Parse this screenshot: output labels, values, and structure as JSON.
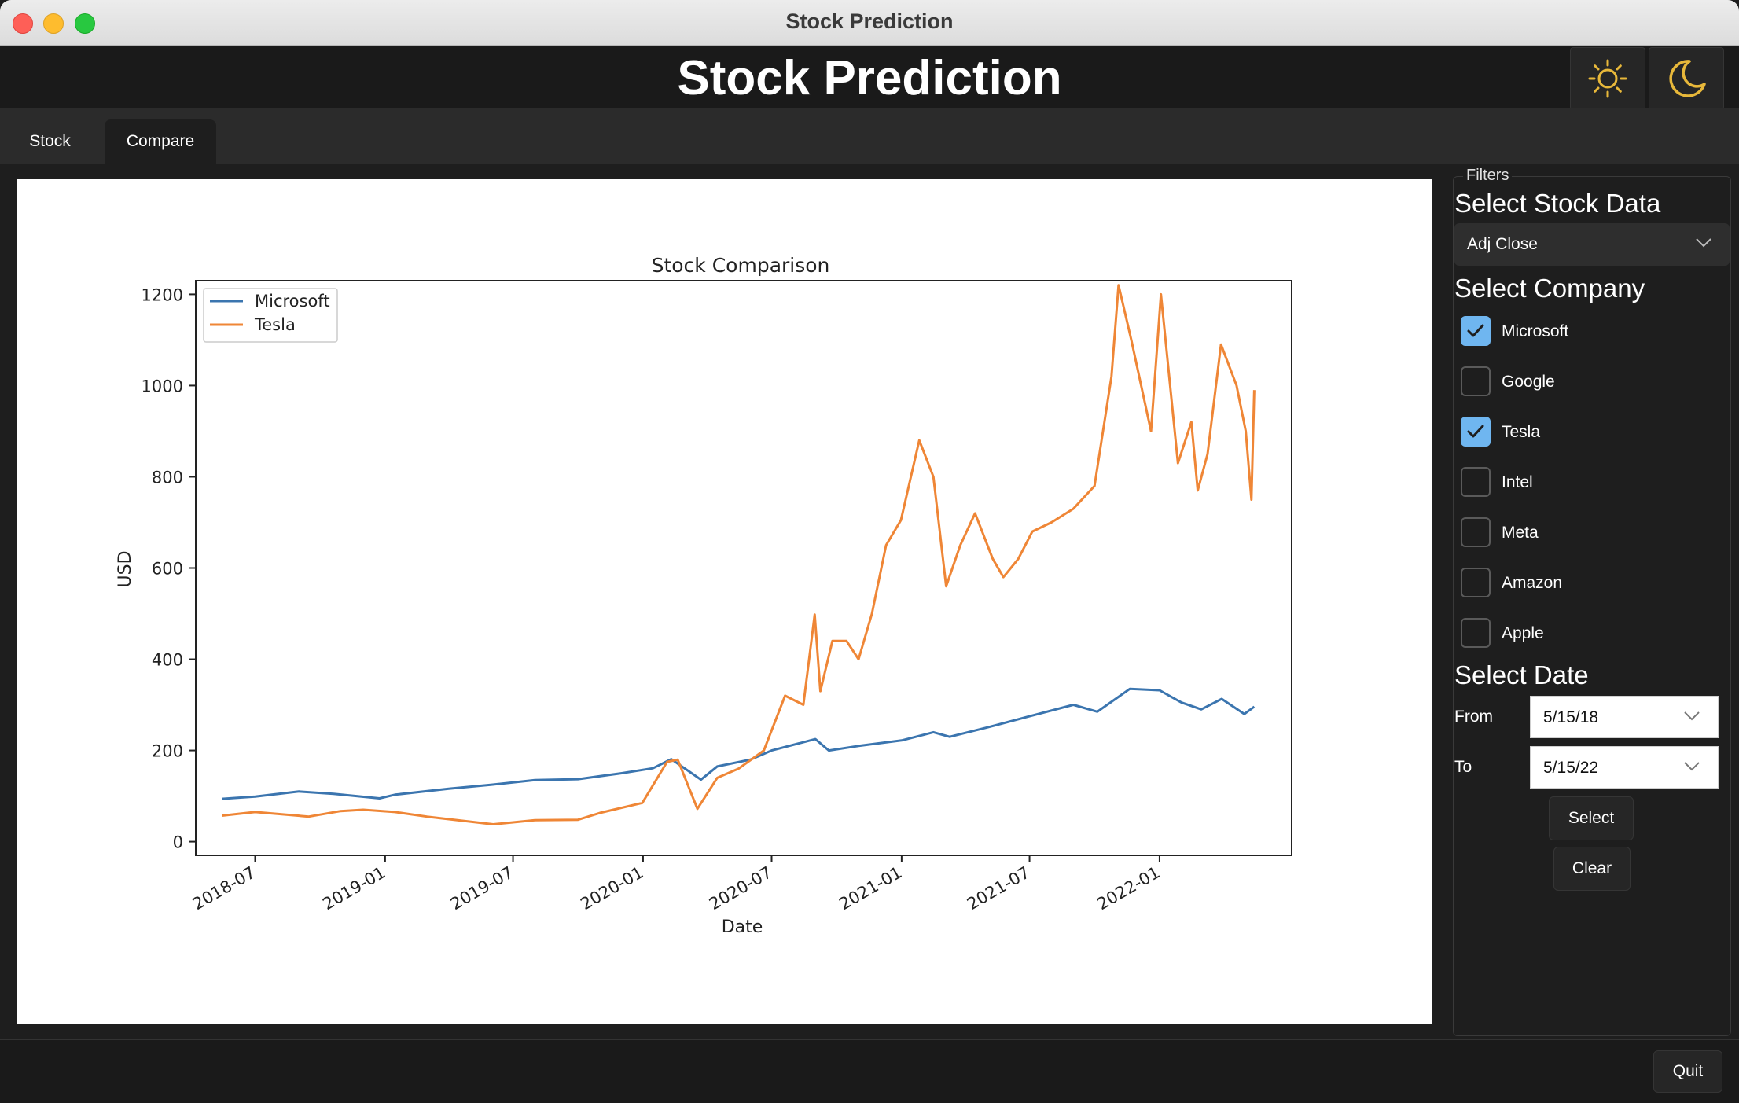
{
  "window": {
    "title": "Stock Prediction"
  },
  "header": {
    "title": "Stock Prediction",
    "light_theme_icon": "sun-icon",
    "dark_theme_icon": "moon-icon"
  },
  "tabs": [
    {
      "label": "Stock",
      "active": false
    },
    {
      "label": "Compare",
      "active": true
    }
  ],
  "filters": {
    "legend": "Filters",
    "stock_data_heading": "Select Stock Data",
    "stock_data_value": "Adj Close",
    "company_heading": "Select Company",
    "companies": [
      {
        "label": "Microsoft",
        "checked": true
      },
      {
        "label": "Google",
        "checked": false
      },
      {
        "label": "Tesla",
        "checked": true
      },
      {
        "label": "Intel",
        "checked": false
      },
      {
        "label": "Meta",
        "checked": false
      },
      {
        "label": "Amazon",
        "checked": false
      },
      {
        "label": "Apple",
        "checked": false
      }
    ],
    "date_heading": "Select Date",
    "from_label": "From",
    "from_value": "5/15/18",
    "to_label": "To",
    "to_value": "5/15/22",
    "select_button": "Select",
    "clear_button": "Clear"
  },
  "footer": {
    "quit_button": "Quit"
  },
  "colors": {
    "microsoft": "#3b75af",
    "tesla": "#ef8636",
    "checkbox_checked": "#6fb6f0",
    "theme_icon": "#e8b83a"
  },
  "chart_data": {
    "type": "line",
    "title": "Stock Comparison",
    "xlabel": "Date",
    "ylabel": "USD",
    "ylim": [
      -30,
      1230
    ],
    "xlim": [
      "2018-04-08",
      "2022-07-07"
    ],
    "yticks": [
      0,
      200,
      400,
      600,
      800,
      1000,
      1200
    ],
    "ytick_labels": [
      "0",
      "200",
      "400",
      "600",
      "800",
      "1000",
      "1200"
    ],
    "xticks": [
      "2018-07-01",
      "2019-01-01",
      "2019-07-01",
      "2020-01-01",
      "2020-07-01",
      "2021-01-01",
      "2021-07-01",
      "2022-01-01"
    ],
    "xtick_labels": [
      "2018-07",
      "2019-01",
      "2019-07",
      "2020-01",
      "2020-07",
      "2021-01",
      "2021-07",
      "2022-01"
    ],
    "legend_position": "top-left",
    "grid": false,
    "series": [
      {
        "name": "Microsoft",
        "points": [
          [
            "2018-05-15",
            94
          ],
          [
            "2018-07-01",
            99
          ],
          [
            "2018-09-01",
            110
          ],
          [
            "2018-10-20",
            105
          ],
          [
            "2018-12-24",
            95
          ],
          [
            "2019-01-15",
            103
          ],
          [
            "2019-04-01",
            116
          ],
          [
            "2019-06-01",
            125
          ],
          [
            "2019-08-01",
            135
          ],
          [
            "2019-10-01",
            137
          ],
          [
            "2019-12-01",
            150
          ],
          [
            "2020-01-15",
            161
          ],
          [
            "2020-02-10",
            181
          ],
          [
            "2020-03-23",
            136
          ],
          [
            "2020-04-15",
            165
          ],
          [
            "2020-06-01",
            180
          ],
          [
            "2020-07-01",
            200
          ],
          [
            "2020-09-01",
            225
          ],
          [
            "2020-09-20",
            200
          ],
          [
            "2020-11-01",
            210
          ],
          [
            "2021-01-01",
            222
          ],
          [
            "2021-02-15",
            240
          ],
          [
            "2021-03-10",
            230
          ],
          [
            "2021-05-01",
            250
          ],
          [
            "2021-07-01",
            275
          ],
          [
            "2021-09-01",
            300
          ],
          [
            "2021-10-05",
            285
          ],
          [
            "2021-11-20",
            335
          ],
          [
            "2022-01-01",
            332
          ],
          [
            "2022-02-01",
            305
          ],
          [
            "2022-03-01",
            290
          ],
          [
            "2022-03-30",
            313
          ],
          [
            "2022-05-01",
            280
          ],
          [
            "2022-05-15",
            296
          ]
        ]
      },
      {
        "name": "Tesla",
        "points": [
          [
            "2018-05-15",
            57
          ],
          [
            "2018-07-01",
            65
          ],
          [
            "2018-09-15",
            55
          ],
          [
            "2018-10-30",
            67
          ],
          [
            "2018-12-01",
            70
          ],
          [
            "2019-01-15",
            65
          ],
          [
            "2019-03-01",
            55
          ],
          [
            "2019-06-03",
            38
          ],
          [
            "2019-08-01",
            47
          ],
          [
            "2019-10-01",
            48
          ],
          [
            "2019-11-01",
            63
          ],
          [
            "2019-12-31",
            85
          ],
          [
            "2020-02-04",
            175
          ],
          [
            "2020-02-19",
            180
          ],
          [
            "2020-03-18",
            72
          ],
          [
            "2020-04-15",
            140
          ],
          [
            "2020-05-15",
            160
          ],
          [
            "2020-06-20",
            200
          ],
          [
            "2020-07-10",
            280
          ],
          [
            "2020-07-20",
            320
          ],
          [
            "2020-08-15",
            300
          ],
          [
            "2020-08-31",
            498
          ],
          [
            "2020-09-08",
            330
          ],
          [
            "2020-09-25",
            440
          ],
          [
            "2020-10-15",
            440
          ],
          [
            "2020-11-01",
            400
          ],
          [
            "2020-11-20",
            500
          ],
          [
            "2020-12-10",
            650
          ],
          [
            "2020-12-31",
            705
          ],
          [
            "2021-01-26",
            880
          ],
          [
            "2021-02-15",
            800
          ],
          [
            "2021-03-05",
            560
          ],
          [
            "2021-03-25",
            650
          ],
          [
            "2021-04-15",
            720
          ],
          [
            "2021-05-10",
            620
          ],
          [
            "2021-05-25",
            580
          ],
          [
            "2021-06-15",
            620
          ],
          [
            "2021-07-05",
            680
          ],
          [
            "2021-08-01",
            700
          ],
          [
            "2021-09-01",
            730
          ],
          [
            "2021-10-01",
            780
          ],
          [
            "2021-10-25",
            1020
          ],
          [
            "2021-11-04",
            1220
          ],
          [
            "2021-11-22",
            1100
          ],
          [
            "2021-12-20",
            900
          ],
          [
            "2022-01-03",
            1200
          ],
          [
            "2022-01-27",
            830
          ],
          [
            "2022-02-15",
            920
          ],
          [
            "2022-02-24",
            770
          ],
          [
            "2022-03-10",
            850
          ],
          [
            "2022-03-29",
            1090
          ],
          [
            "2022-04-20",
            1000
          ],
          [
            "2022-05-03",
            900
          ],
          [
            "2022-05-11",
            750
          ],
          [
            "2022-05-15",
            990
          ]
        ]
      }
    ]
  }
}
